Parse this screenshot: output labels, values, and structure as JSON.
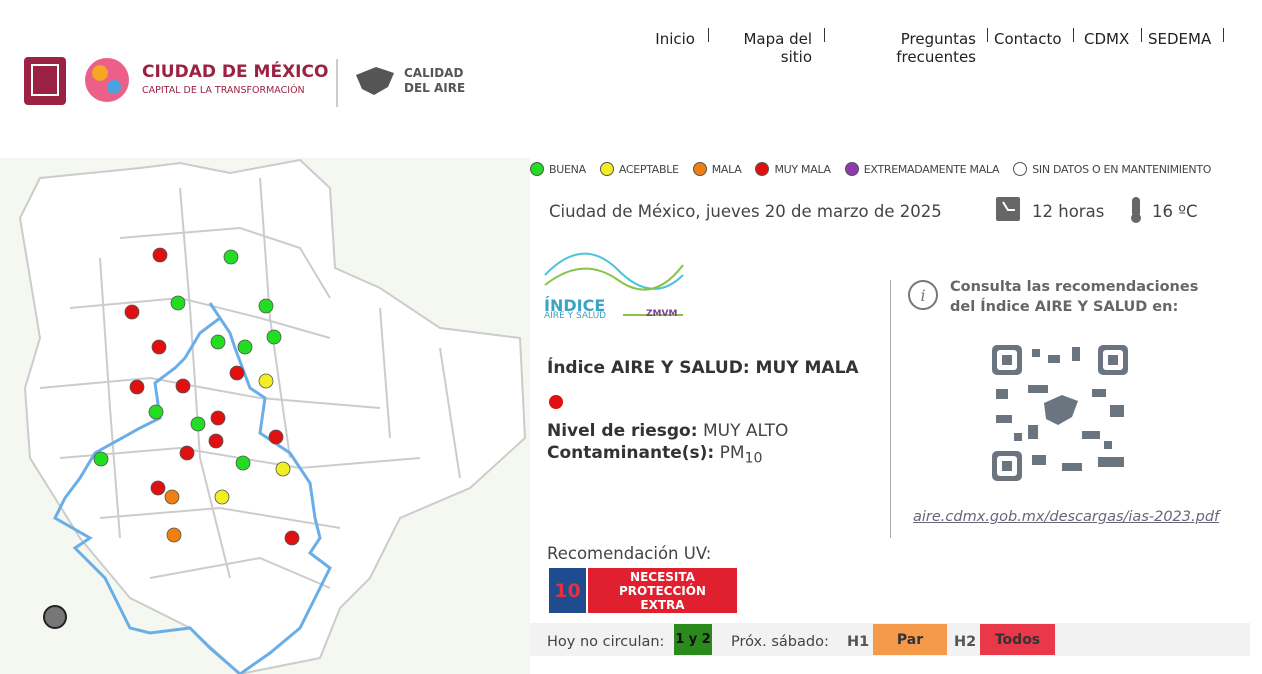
{
  "header": {
    "brand_title": "CIUDAD DE MÉXICO",
    "brand_subtitle": "CAPITAL DE LA TRANSFORMACIÓN",
    "brand_second_line1": "CALIDAD",
    "brand_second_line2": "DEL AIRE",
    "nav": [
      "Inicio",
      "Mapa del sitio",
      "Preguntas frecuentes",
      "Contacto",
      "CDMX",
      "SEDEMA"
    ]
  },
  "legend": [
    {
      "label": "BUENA",
      "color": "#22dd22"
    },
    {
      "label": "ACEPTABLE",
      "color": "#f2ee22"
    },
    {
      "label": "MALA",
      "color": "#f07f11"
    },
    {
      "label": "MUY MALA",
      "color": "#e01010"
    },
    {
      "label": "EXTREMADAMENTE MALA",
      "color": "#8e3bab"
    },
    {
      "label": "SIN DATOS O EN MANTENIMIENTO",
      "color": "#ffffff"
    }
  ],
  "status": {
    "date": "Ciudad de México, jueves 20 de marzo de 2025",
    "hour": "12 horas",
    "temperature": "16 ºC"
  },
  "index": {
    "logo_title": "ÍNDICE",
    "logo_subtitle": "AIRE Y SALUD",
    "logo_region": "ZMVM",
    "heading": "Índice AIRE Y SALUD: MUY MALA",
    "risk_label": "Nivel de riesgo:",
    "risk_value": "MUY ALTO",
    "pollutant_label": "Contaminante(s):",
    "pollutant": "PM",
    "pollutant_sub": "10"
  },
  "consult": {
    "text": "Consulta las recomendaciones del Índice AIRE Y SALUD en:",
    "link": "aire.cdmx.gob.mx/descargas/ias-2023.pdf"
  },
  "uv": {
    "label": "Recomendación UV:",
    "value": "10",
    "text": "NECESITA PROTECCIÓN EXTRA"
  },
  "circulation": {
    "today_label": "Hoy no circulan:",
    "today_value": "1 y 2",
    "saturday_label": "Próx. sábado:",
    "h1": "H1",
    "h1_value": "Par",
    "h2": "H2",
    "h2_value": "Todos"
  },
  "help": "?"
}
